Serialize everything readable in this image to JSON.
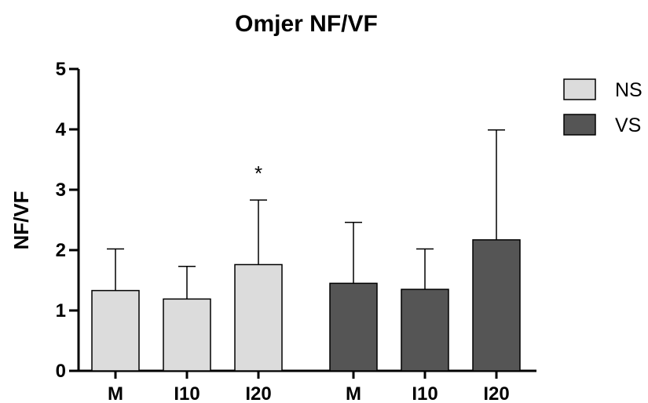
{
  "chart_data": {
    "type": "bar",
    "title": "Omjer NF/VF",
    "xlabel": "",
    "ylabel": "NF/VF",
    "ylim": [
      0,
      5
    ],
    "yticks": [
      0,
      1,
      2,
      3,
      4,
      5
    ],
    "categories": [
      "M",
      "I10",
      "I20"
    ],
    "series": [
      {
        "name": "NS",
        "color": "#dcdcdc",
        "values": [
          1.33,
          1.19,
          1.76
        ],
        "error_upper": [
          2.02,
          1.73,
          2.83
        ],
        "annotations": [
          "",
          "",
          "*"
        ]
      },
      {
        "name": "VS",
        "color": "#555555",
        "values": [
          1.45,
          1.35,
          2.17
        ],
        "error_upper": [
          2.46,
          2.02,
          3.99
        ],
        "annotations": [
          "",
          "",
          ""
        ]
      }
    ],
    "legend_position": "top-right",
    "grid": false
  }
}
